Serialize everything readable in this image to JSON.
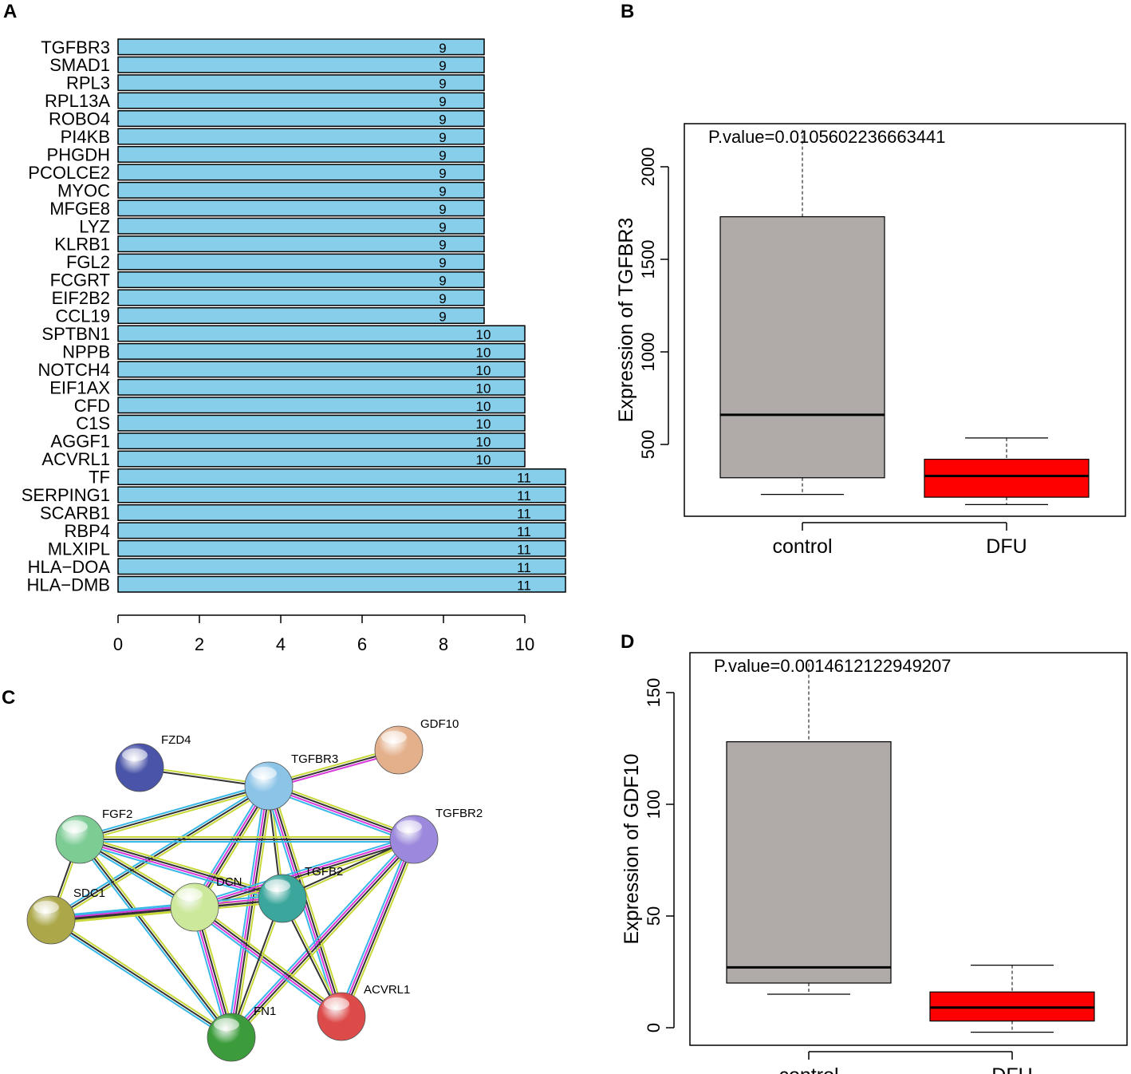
{
  "panels": {
    "a": "A",
    "b": "B",
    "c": "C",
    "d": "D"
  },
  "chart_data": [
    {
      "panel": "A",
      "type": "bar",
      "orientation": "horizontal",
      "bar_color": "#87CEEB",
      "categories": [
        "TGFBR3",
        "SMAD1",
        "RPL3",
        "RPL13A",
        "ROBO4",
        "PI4KB",
        "PHGDH",
        "PCOLCE2",
        "MYOC",
        "MFGE8",
        "LYZ",
        "KLRB1",
        "FGL2",
        "FCGRT",
        "EIF2B2",
        "CCL19",
        "SPTBN1",
        "NPPB",
        "NOTCH4",
        "EIF1AX",
        "CFD",
        "C1S",
        "AGGF1",
        "ACVRL1",
        "TF",
        "SERPING1",
        "SCARB1",
        "RBP4",
        "MLXIPL",
        "HLA−DOA",
        "HLA−DMB"
      ],
      "values": [
        9,
        9,
        9,
        9,
        9,
        9,
        9,
        9,
        9,
        9,
        9,
        9,
        9,
        9,
        9,
        9,
        10,
        10,
        10,
        10,
        10,
        10,
        10,
        10,
        11,
        11,
        11,
        11,
        11,
        11,
        11
      ],
      "xlim": [
        0,
        11
      ],
      "xticks": [
        "0",
        "2",
        "4",
        "6",
        "8",
        "10"
      ],
      "xlabel": "",
      "ylabel": ""
    },
    {
      "panel": "B",
      "type": "boxplot",
      "annotation": "P.value=0.0105602236663441",
      "ylabel": "Expression of TGFBR3",
      "ylim": [
        100,
        2200
      ],
      "yticks": [
        "500",
        "1000",
        "1500",
        "2000"
      ],
      "categories": [
        "control",
        "DFU"
      ],
      "boxes": [
        {
          "name": "control",
          "color": "#B0ABA9",
          "min": 230,
          "q1": 320,
          "median": 660,
          "q3": 1730,
          "max": 2200
        },
        {
          "name": "DFU",
          "color": "#FF0000",
          "min": 175,
          "q1": 215,
          "median": 330,
          "q3": 420,
          "max": 535
        }
      ]
    },
    {
      "panel": "D",
      "type": "boxplot",
      "annotation": "P.value=0.0014612122949207",
      "ylabel": "Expression of GDF10",
      "ylim": [
        -2,
        163
      ],
      "yticks": [
        "0",
        "50",
        "100",
        "150"
      ],
      "categories": [
        "control",
        "DFU"
      ],
      "boxes": [
        {
          "name": "control",
          "color": "#B0ABA9",
          "min": 15,
          "q1": 20,
          "median": 27,
          "q3": 128,
          "max": 163
        },
        {
          "name": "DFU",
          "color": "#FF0000",
          "min": -2,
          "q1": 3,
          "median": 9,
          "q3": 16,
          "max": 28
        }
      ]
    }
  ],
  "network": {
    "panel": "C",
    "nodes": [
      {
        "id": "FZD4",
        "label": "FZD4",
        "color": "#4A54A8"
      },
      {
        "id": "TGFBR3",
        "label": "TGFBR3",
        "color": "#8CC4E8"
      },
      {
        "id": "GDF10",
        "label": "GDF10",
        "color": "#E4B08C"
      },
      {
        "id": "FGF2",
        "label": "FGF2",
        "color": "#7CCC94"
      },
      {
        "id": "TGFBR2",
        "label": "TGFBR2",
        "color": "#9C88DC"
      },
      {
        "id": "DCN",
        "label": "DCN",
        "color": "#CCE89A"
      },
      {
        "id": "TGFB2",
        "label": "TGFB2",
        "color": "#3AA69C"
      },
      {
        "id": "SDC1",
        "label": "SDC1",
        "color": "#ACA84A"
      },
      {
        "id": "ACVRL1",
        "label": "ACVRL1",
        "color": "#DC4A4A"
      },
      {
        "id": "FN1",
        "label": "FN1",
        "color": "#3C9C3C"
      }
    ],
    "edges": [
      [
        "FZD4",
        "TGFBR3"
      ],
      [
        "TGFBR3",
        "GDF10"
      ],
      [
        "TGFBR3",
        "FGF2"
      ],
      [
        "TGFBR3",
        "TGFBR2"
      ],
      [
        "TGFBR3",
        "DCN"
      ],
      [
        "TGFBR3",
        "TGFB2"
      ],
      [
        "TGFBR3",
        "SDC1"
      ],
      [
        "TGFBR3",
        "FN1"
      ],
      [
        "TGFBR3",
        "ACVRL1"
      ],
      [
        "FGF2",
        "TGFBR2"
      ],
      [
        "FGF2",
        "DCN"
      ],
      [
        "FGF2",
        "TGFB2"
      ],
      [
        "FGF2",
        "SDC1"
      ],
      [
        "FGF2",
        "FN1"
      ],
      [
        "TGFBR2",
        "DCN"
      ],
      [
        "TGFBR2",
        "TGFB2"
      ],
      [
        "TGFBR2",
        "FN1"
      ],
      [
        "TGFBR2",
        "ACVRL1"
      ],
      [
        "DCN",
        "TGFB2"
      ],
      [
        "DCN",
        "SDC1"
      ],
      [
        "DCN",
        "FN1"
      ],
      [
        "DCN",
        "ACVRL1"
      ],
      [
        "TGFB2",
        "SDC1"
      ],
      [
        "TGFB2",
        "FN1"
      ],
      [
        "TGFB2",
        "ACVRL1"
      ],
      [
        "SDC1",
        "FN1"
      ]
    ]
  }
}
